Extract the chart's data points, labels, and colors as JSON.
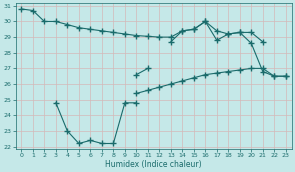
{
  "xlabel": "Humidex (Indice chaleur)",
  "bg_color": "#c5e8e8",
  "line_color": "#1a6b6b",
  "grid_color": "#d4b8b8",
  "ylim": [
    22,
    31
  ],
  "xlim": [
    -0.5,
    23.5
  ],
  "yticks": [
    22,
    23,
    24,
    25,
    26,
    27,
    28,
    29,
    30,
    31
  ],
  "xticks": [
    0,
    1,
    2,
    3,
    4,
    5,
    6,
    7,
    8,
    9,
    10,
    11,
    12,
    13,
    14,
    15,
    16,
    17,
    18,
    19,
    20,
    21,
    22,
    23
  ],
  "line_upper": {
    "x": [
      0,
      1,
      2,
      3,
      4,
      5,
      6,
      7,
      8,
      9,
      10,
      11,
      12,
      13,
      14,
      15,
      16,
      17,
      18,
      19,
      20,
      21
    ],
    "y": [
      30.8,
      30.7,
      30.0,
      30.0,
      29.8,
      29.6,
      29.5,
      29.4,
      29.3,
      29.2,
      29.1,
      29.05,
      29.0,
      29.0,
      29.4,
      29.5,
      30.0,
      29.4,
      29.2,
      29.3,
      29.3,
      28.7
    ]
  },
  "line_middle": {
    "x": [
      10,
      11,
      13,
      14,
      15,
      16,
      17,
      18,
      19,
      20,
      21,
      22,
      23
    ],
    "y": [
      26.6,
      27.0,
      28.7,
      29.4,
      29.5,
      30.0,
      28.8,
      29.2,
      29.3,
      28.6,
      26.8,
      26.5,
      26.5
    ]
  },
  "line_lower_dip": {
    "x": [
      3,
      4,
      5,
      6,
      7,
      8,
      9,
      10
    ],
    "y": [
      24.8,
      23.0,
      22.2,
      22.4,
      22.2,
      22.2,
      24.8,
      24.8
    ]
  },
  "line_diag": {
    "x": [
      10,
      11,
      12,
      13,
      14,
      15,
      16,
      17,
      18,
      19,
      20,
      21,
      22,
      23
    ],
    "y": [
      25.4,
      25.6,
      25.8,
      26.0,
      26.2,
      26.4,
      26.6,
      26.7,
      26.8,
      26.9,
      27.0,
      27.0,
      26.5,
      26.5
    ]
  },
  "marker": "+",
  "linewidth": 0.8,
  "markersize": 4
}
